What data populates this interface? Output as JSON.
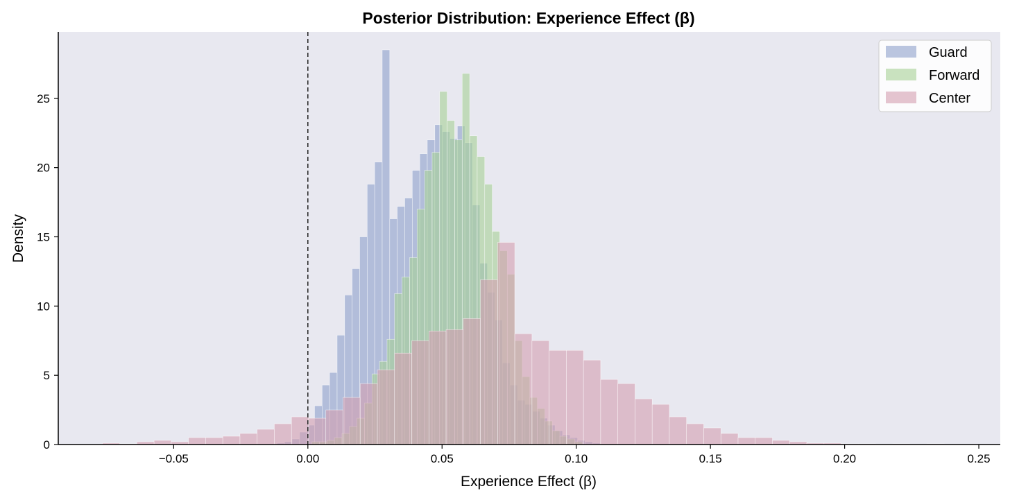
{
  "chart_data": {
    "type": "histogram",
    "title": "Posterior Distribution: Experience Effect (β)",
    "xlabel": "Experience Effect (β)",
    "ylabel": "Density",
    "xlim": [
      -0.093,
      0.258
    ],
    "ylim": [
      0,
      29.8
    ],
    "x_ticks": [
      -0.05,
      0.0,
      0.05,
      0.1,
      0.15,
      0.2,
      0.25
    ],
    "x_tick_labels": [
      "−0.05",
      "0.00",
      "0.05",
      "0.10",
      "0.15",
      "0.20",
      "0.25"
    ],
    "y_ticks": [
      0,
      5,
      10,
      15,
      20,
      25
    ],
    "y_tick_labels": [
      "0",
      "5",
      "10",
      "15",
      "20",
      "25"
    ],
    "reference_line_x": 0.0,
    "legend_position": "top-right",
    "background_color": "#e8e8f0",
    "series": [
      {
        "name": "Guard",
        "color": "#8da0cb",
        "bin_start": -0.0115,
        "bin_width": 0.0028,
        "values": [
          0.1,
          0.2,
          0.4,
          0.9,
          1.4,
          2.8,
          4.3,
          5.2,
          7.9,
          10.8,
          12.7,
          15.0,
          18.8,
          20.4,
          28.5,
          16.3,
          17.2,
          17.8,
          19.8,
          21.0,
          22.0,
          23.1,
          22.6,
          22.1,
          23.0,
          21.8,
          17.3,
          13.1,
          11.0,
          9.0,
          5.9,
          4.3,
          3.2,
          2.9,
          2.4,
          1.9,
          1.4,
          1.0,
          0.7,
          0.5,
          0.3,
          0.2,
          0.1
        ]
      },
      {
        "name": "Forward",
        "color": "#a6d096",
        "bin_start": 0.0015,
        "bin_width": 0.0028,
        "values": [
          0.2,
          0.2,
          0.3,
          0.5,
          0.8,
          1.3,
          1.9,
          3.0,
          5.1,
          6.0,
          7.6,
          10.9,
          12.1,
          13.5,
          17.0,
          19.8,
          21.1,
          25.5,
          23.4,
          22.0,
          26.8,
          22.3,
          20.8,
          18.8,
          15.4,
          14.0,
          12.3,
          7.5,
          4.9,
          3.4,
          2.6,
          1.7,
          1.0,
          0.6,
          0.4,
          0.2
        ]
      },
      {
        "name": "Center",
        "color": "#d49fb0",
        "bin_start": -0.0765,
        "bin_width": 0.0064,
        "values": [
          0.1,
          0.05,
          0.2,
          0.3,
          0.2,
          0.5,
          0.5,
          0.6,
          0.8,
          1.1,
          1.5,
          2.0,
          1.9,
          2.5,
          3.4,
          4.4,
          5.4,
          6.6,
          7.5,
          8.2,
          8.3,
          9.1,
          11.9,
          14.6,
          8.0,
          7.5,
          6.8,
          6.8,
          6.1,
          4.7,
          4.4,
          3.3,
          2.9,
          2.0,
          1.5,
          1.2,
          0.8,
          0.5,
          0.5,
          0.3,
          0.2,
          0.1,
          0.1,
          0.05,
          0.05,
          0.02,
          0.05,
          0.0,
          0.05
        ]
      }
    ]
  }
}
